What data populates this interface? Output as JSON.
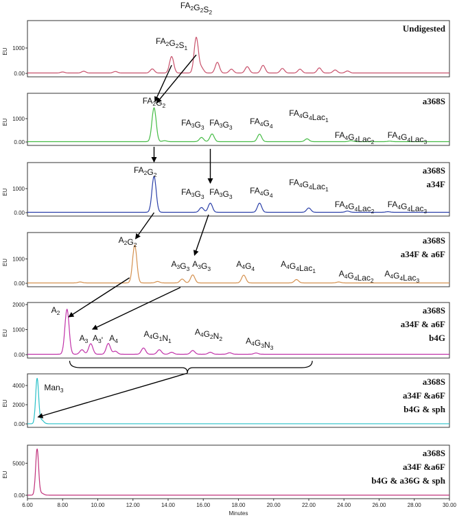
{
  "chart_data": {
    "type": "line",
    "xlabel": "Minutes",
    "ylabel": "EU",
    "xlim": [
      6.0,
      30.0
    ],
    "x_ticks": [
      "6.00",
      "8.00",
      "10.00",
      "12.00",
      "14.00",
      "16.00",
      "18.00",
      "20.00",
      "22.00",
      "24.00",
      "26.00",
      "28.00",
      "30.00"
    ],
    "colors": {
      "undigested": "#c8506a",
      "green": "#44bb44",
      "blue": "#2a3fa8",
      "orange": "#d4904e",
      "magenta": "#c030a8",
      "cyan": "#28c0c8",
      "pink": "#c0307a",
      "arrows": "#000000"
    },
    "panels": [
      {
        "condition": [
          "Undigested"
        ],
        "color": "#c8506a",
        "ylim": [
          0,
          2000
        ],
        "y_ticks": [
          "0.00",
          "1000"
        ],
        "peaks": [
          [
            8.0,
            40
          ],
          [
            9.2,
            70
          ],
          [
            11.0,
            60
          ],
          [
            13.1,
            160
          ],
          [
            14.2,
            650
          ],
          [
            15.6,
            1400
          ],
          [
            15.9,
            200
          ],
          [
            16.8,
            420
          ],
          [
            17.6,
            150
          ],
          [
            18.5,
            250
          ],
          [
            19.4,
            300
          ],
          [
            20.5,
            180
          ],
          [
            21.5,
            150
          ],
          [
            22.6,
            200
          ],
          [
            23.5,
            120
          ],
          [
            24.2,
            80
          ]
        ],
        "labels": [
          {
            "id": "FA2G2S2",
            "x": 15.6,
            "segs": [
              [
                "FA",
                ""
              ],
              [
                "2",
                "s"
              ],
              [
                "G",
                ""
              ],
              [
                "2",
                "s"
              ],
              [
                "S",
                ""
              ],
              [
                "2",
                "s"
              ]
            ]
          },
          {
            "id": "FA2G2S1",
            "x": 14.2,
            "segs": [
              [
                "FA",
                ""
              ],
              [
                "2",
                "s"
              ],
              [
                "G",
                ""
              ],
              [
                "2",
                "s"
              ],
              [
                "S",
                ""
              ],
              [
                "1",
                "s"
              ]
            ]
          }
        ]
      },
      {
        "condition": [
          "a368S"
        ],
        "color": "#44bb44",
        "ylim": [
          0,
          2000
        ],
        "y_ticks": [
          "0.00",
          "1000"
        ],
        "peaks": [
          [
            13.2,
            1450
          ],
          [
            13.8,
            40
          ],
          [
            15.9,
            180
          ],
          [
            16.5,
            330
          ],
          [
            19.2,
            320
          ],
          [
            21.9,
            120
          ],
          [
            24.4,
            40
          ],
          [
            26.6,
            20
          ]
        ],
        "labels": [
          {
            "id": "FA2G2",
            "x": 13.2,
            "segs": [
              [
                "FA",
                ""
              ],
              [
                "2",
                "s"
              ],
              [
                "G",
                ""
              ],
              [
                "2",
                "s"
              ]
            ]
          },
          {
            "id": "FA3G3a",
            "x": 15.4,
            "segs": [
              [
                "FA",
                ""
              ],
              [
                "3",
                "s"
              ],
              [
                "G",
                ""
              ],
              [
                "3",
                "s"
              ]
            ]
          },
          {
            "id": "FA3G3b",
            "x": 17.0,
            "segs": [
              [
                "FA",
                ""
              ],
              [
                "3",
                "s"
              ],
              [
                "G",
                ""
              ],
              [
                "3",
                "s"
              ]
            ]
          },
          {
            "id": "FA4G4",
            "x": 19.3,
            "segs": [
              [
                "FA",
                ""
              ],
              [
                "4",
                "s"
              ],
              [
                "G",
                ""
              ],
              [
                "4",
                "s"
              ]
            ]
          },
          {
            "id": "FA4G4Lac1",
            "x": 22.0,
            "segs": [
              [
                "FA",
                ""
              ],
              [
                "4",
                "s"
              ],
              [
                "G",
                ""
              ],
              [
                "4",
                "s"
              ],
              [
                "Lac",
                ""
              ],
              [
                "1",
                "s"
              ]
            ]
          },
          {
            "id": "FA4G4Lac2",
            "x": 24.6,
            "segs": [
              [
                "FA",
                ""
              ],
              [
                "4",
                "s"
              ],
              [
                "G",
                ""
              ],
              [
                "4",
                "s"
              ],
              [
                "Lac",
                ""
              ],
              [
                "2",
                "s"
              ]
            ]
          },
          {
            "id": "FA4G4Lac3",
            "x": 27.6,
            "segs": [
              [
                "FA",
                ""
              ],
              [
                "4",
                "s"
              ],
              [
                "G",
                ""
              ],
              [
                "4",
                "s"
              ],
              [
                "Lac",
                ""
              ],
              [
                "3",
                "s"
              ]
            ]
          }
        ]
      },
      {
        "condition": [
          "a368S",
          "a34F"
        ],
        "color": "#2a3fa8",
        "ylim": [
          0,
          2000
        ],
        "y_ticks": [
          "0.00",
          "1000"
        ],
        "peaks": [
          [
            13.2,
            1500
          ],
          [
            15.9,
            200
          ],
          [
            16.4,
            380
          ],
          [
            19.2,
            380
          ],
          [
            22.0,
            180
          ],
          [
            24.2,
            50
          ],
          [
            26.5,
            25
          ]
        ],
        "labels": [
          {
            "id": "FA2G2",
            "x": 12.7,
            "segs": [
              [
                "FA",
                ""
              ],
              [
                "2",
                "s"
              ],
              [
                "G",
                ""
              ],
              [
                "2",
                "s"
              ]
            ]
          },
          {
            "id": "FA3G3a",
            "x": 15.4,
            "segs": [
              [
                "FA",
                ""
              ],
              [
                "3",
                "s"
              ],
              [
                "G",
                ""
              ],
              [
                "3",
                "s"
              ]
            ]
          },
          {
            "id": "FA3G3b",
            "x": 17.0,
            "segs": [
              [
                "FA",
                ""
              ],
              [
                "3",
                "s"
              ],
              [
                "G",
                ""
              ],
              [
                "3",
                "s"
              ]
            ]
          },
          {
            "id": "FA4G4",
            "x": 19.3,
            "segs": [
              [
                "FA",
                ""
              ],
              [
                "4",
                "s"
              ],
              [
                "G",
                ""
              ],
              [
                "4",
                "s"
              ]
            ]
          },
          {
            "id": "FA4G4Lac1",
            "x": 22.0,
            "segs": [
              [
                "FA",
                ""
              ],
              [
                "4",
                "s"
              ],
              [
                "G",
                ""
              ],
              [
                "4",
                "s"
              ],
              [
                "Lac",
                ""
              ],
              [
                "1",
                "s"
              ]
            ]
          },
          {
            "id": "FA4G4Lac2",
            "x": 24.6,
            "segs": [
              [
                "FA",
                ""
              ],
              [
                "4",
                "s"
              ],
              [
                "G",
                ""
              ],
              [
                "4",
                "s"
              ],
              [
                "Lac",
                ""
              ],
              [
                "2",
                "s"
              ]
            ]
          },
          {
            "id": "FA4G4Lac3",
            "x": 27.6,
            "segs": [
              [
                "FA",
                ""
              ],
              [
                "4",
                "s"
              ],
              [
                "G",
                ""
              ],
              [
                "4",
                "s"
              ],
              [
                "Lac",
                ""
              ],
              [
                "3",
                "s"
              ]
            ]
          }
        ]
      },
      {
        "condition": [
          "a368S",
          "a34F & a6F"
        ],
        "color": "#d4904e",
        "ylim": [
          0,
          2000
        ],
        "y_ticks": [
          "0.00",
          "1000"
        ],
        "peaks": [
          [
            9.0,
            40
          ],
          [
            12.1,
            1550
          ],
          [
            13.4,
            60
          ],
          [
            14.8,
            160
          ],
          [
            15.4,
            330
          ],
          [
            18.3,
            320
          ],
          [
            21.3,
            140
          ],
          [
            23.7,
            40
          ]
        ],
        "labels": [
          {
            "id": "A2G2",
            "x": 11.7,
            "segs": [
              [
                "A",
                ""
              ],
              [
                "2",
                "s"
              ],
              [
                "G",
                ""
              ],
              [
                "2",
                "s"
              ]
            ]
          },
          {
            "id": "A3G3a",
            "x": 14.7,
            "segs": [
              [
                "A",
                ""
              ],
              [
                "3",
                "s"
              ],
              [
                "G",
                ""
              ],
              [
                "3",
                "s"
              ]
            ]
          },
          {
            "id": "A3G3b",
            "x": 15.9,
            "segs": [
              [
                "A",
                ""
              ],
              [
                "3",
                "s"
              ],
              [
                "G",
                ""
              ],
              [
                "3",
                "s"
              ]
            ]
          },
          {
            "id": "A4G4",
            "x": 18.4,
            "segs": [
              [
                "A",
                ""
              ],
              [
                "4",
                "s"
              ],
              [
                "G",
                ""
              ],
              [
                "4",
                "s"
              ]
            ]
          },
          {
            "id": "A4G4Lac1",
            "x": 21.4,
            "segs": [
              [
                "A",
                ""
              ],
              [
                "4",
                "s"
              ],
              [
                "G",
                ""
              ],
              [
                "4",
                "s"
              ],
              [
                "Lac",
                ""
              ],
              [
                "1",
                "s"
              ]
            ]
          },
          {
            "id": "A4G4Lac2",
            "x": 24.7,
            "segs": [
              [
                "A",
                ""
              ],
              [
                "4",
                "s"
              ],
              [
                "G",
                ""
              ],
              [
                "4",
                "s"
              ],
              [
                "Lac",
                ""
              ],
              [
                "2",
                "s"
              ]
            ]
          },
          {
            "id": "A4G4Lac3",
            "x": 27.3,
            "segs": [
              [
                "A",
                ""
              ],
              [
                "4",
                "s"
              ],
              [
                "G",
                ""
              ],
              [
                "4",
                "s"
              ],
              [
                "Lac",
                ""
              ],
              [
                "3",
                "s"
              ]
            ]
          }
        ]
      },
      {
        "condition": [
          "a368S",
          "a34F & a6F",
          "b4G"
        ],
        "color": "#c030a8",
        "ylim": [
          0,
          2000
        ],
        "y_ticks": [
          "0.00",
          "1000",
          "2000"
        ],
        "peaks": [
          [
            8.25,
            1800
          ],
          [
            9.1,
            180
          ],
          [
            9.6,
            420
          ],
          [
            10.6,
            430
          ],
          [
            11.0,
            120
          ],
          [
            12.6,
            250
          ],
          [
            13.5,
            180
          ],
          [
            14.2,
            80
          ],
          [
            15.4,
            150
          ],
          [
            16.4,
            80
          ],
          [
            17.5,
            60
          ],
          [
            19.0,
            50
          ]
        ],
        "labels": [
          {
            "id": "A2",
            "x": 7.6,
            "segs": [
              [
                "A",
                ""
              ],
              [
                "2",
                "s"
              ]
            ]
          },
          {
            "id": "A3",
            "x": 9.2,
            "segs": [
              [
                "A",
                ""
              ],
              [
                "3",
                "s"
              ]
            ]
          },
          {
            "id": "A3p",
            "x": 10.0,
            "segs": [
              [
                "A",
                ""
              ],
              [
                "3",
                "s"
              ],
              [
                "'",
                ""
              ]
            ]
          },
          {
            "id": "A4",
            "x": 10.9,
            "segs": [
              [
                "A",
                ""
              ],
              [
                "4",
                "s"
              ]
            ]
          },
          {
            "id": "A4G1N1",
            "x": 13.4,
            "segs": [
              [
                "A",
                ""
              ],
              [
                "4",
                "s"
              ],
              [
                "G",
                ""
              ],
              [
                "1",
                "s"
              ],
              [
                "N",
                ""
              ],
              [
                "1",
                "s"
              ]
            ]
          },
          {
            "id": "A4G2N2",
            "x": 16.3,
            "segs": [
              [
                "A",
                ""
              ],
              [
                "4",
                "s"
              ],
              [
                "G",
                ""
              ],
              [
                "2",
                "s"
              ],
              [
                "N",
                ""
              ],
              [
                "2",
                "s"
              ]
            ]
          },
          {
            "id": "A4G3N3",
            "x": 19.2,
            "segs": [
              [
                "A",
                ""
              ],
              [
                "4",
                "s"
              ],
              [
                "G",
                ""
              ],
              [
                "3",
                "s"
              ],
              [
                "N",
                ""
              ],
              [
                "3",
                "s"
              ]
            ]
          }
        ]
      },
      {
        "condition": [
          "a368S",
          "a34F &a6F",
          "b4G & sph"
        ],
        "color": "#28c0c8",
        "ylim": [
          0,
          5000
        ],
        "y_ticks": [
          "0.00",
          "2000",
          "4000"
        ],
        "peaks": [
          [
            6.55,
            4700
          ],
          [
            6.8,
            400
          ]
        ],
        "labels": [
          {
            "id": "Man3",
            "x": 7.5,
            "segs": [
              [
                "Man",
                ""
              ],
              [
                "3",
                "s"
              ]
            ]
          }
        ]
      },
      {
        "condition": [
          "a368S",
          "a34F &a6F",
          "b4G & a36G & sph"
        ],
        "color": "#c0307a",
        "ylim": [
          0,
          7500
        ],
        "y_ticks": [
          "0.00",
          "5000"
        ],
        "peaks": [
          [
            6.55,
            7200
          ],
          [
            6.8,
            300
          ]
        ],
        "labels": []
      }
    ]
  }
}
